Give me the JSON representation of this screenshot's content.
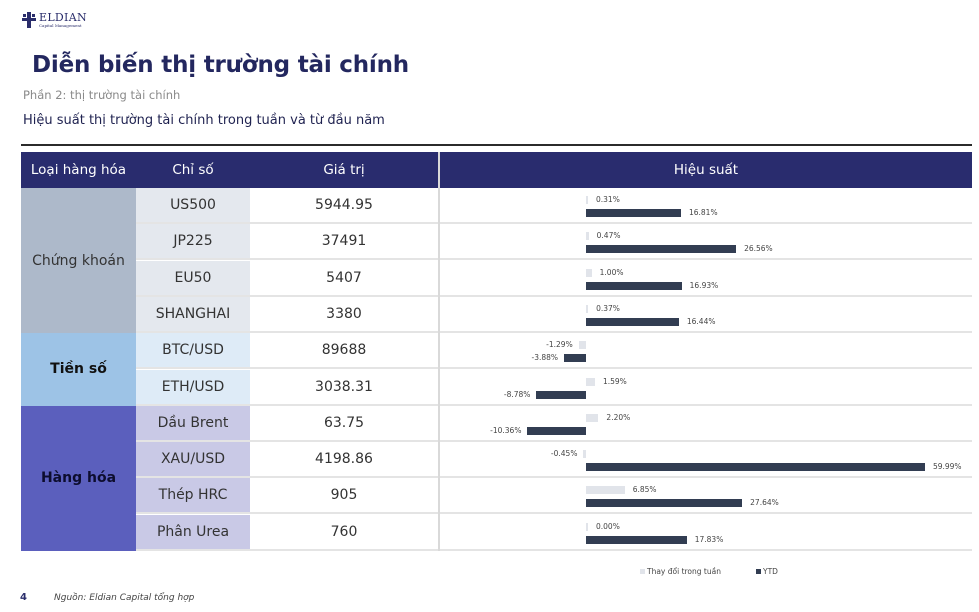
{
  "brand": {
    "name": "ELDIAN",
    "tagline": "Capital Management"
  },
  "title": "Diễn biến thị trường tài chính",
  "subtitle": "Phần 2: thị trường tài chính",
  "heading": "Hiệu suất thị trường tài chính trong tuần và từ đầu năm",
  "table": {
    "headers": {
      "category": "Loại hàng hóa",
      "index": "Chỉ số",
      "value": "Giá trị",
      "performance": "Hiệu suất"
    },
    "groups": [
      {
        "label": "Chứng khoán",
        "color": "#adb9ca",
        "idx_color": "#e4e8ee",
        "text_color": "#333333",
        "bold": false
      },
      {
        "label": "Tiền số",
        "color": "#9dc3e6",
        "idx_color": "#deebf7",
        "text_color": "#111111",
        "bold": true
      },
      {
        "label": "Hàng hóa",
        "color": "#5b5fbd",
        "idx_color": "#c9c9e6",
        "text_color": "#0d0d2e",
        "bold": true
      }
    ],
    "rows": [
      {
        "index": "US500",
        "value": "5944.95",
        "week": "0.31%",
        "ytd": "16.81%"
      },
      {
        "index": "JP225",
        "value": "37491",
        "week": "0.47%",
        "ytd": "26.56%"
      },
      {
        "index": "EU50",
        "value": "5407",
        "week": "1.00%",
        "ytd": "16.93%"
      },
      {
        "index": "SHANGHAI",
        "value": "3380",
        "week": "0.37%",
        "ytd": "16.44%"
      },
      {
        "index": "BTC/USD",
        "value": "89688",
        "week": "-1.29%",
        "ytd": "-3.88%"
      },
      {
        "index": "ETH/USD",
        "value": "3038.31",
        "week": "1.59%",
        "ytd": "-8.78%"
      },
      {
        "index": "Dầu Brent",
        "value": "63.75",
        "week": "2.20%",
        "ytd": "-10.36%"
      },
      {
        "index": "XAU/USD",
        "value": "4198.86",
        "week": "-0.45%",
        "ytd": "59.99%"
      },
      {
        "index": "Thép HRC",
        "value": "905",
        "week": "6.85%",
        "ytd": "27.64%"
      },
      {
        "index": "Phân Urea",
        "value": "760",
        "week": "0.00%",
        "ytd": "17.83%"
      }
    ]
  },
  "legend": {
    "week": "Thay đổi trong tuần",
    "ytd": "YTD"
  },
  "colors": {
    "header_bg": "#292c6e",
    "ytd_bar": "#323d52",
    "week_bar": "#e1e4ea",
    "title": "#23275f"
  },
  "footer": {
    "page": "4",
    "source": "Nguồn: Eldian Capital tổng hợp"
  },
  "chart_data": {
    "type": "bar",
    "orientation": "horizontal",
    "title": "Hiệu suất",
    "categories": [
      "US500",
      "JP225",
      "EU50",
      "SHANGHAI",
      "BTC/USD",
      "ETH/USD",
      "Dầu Brent",
      "XAU/USD",
      "Thép HRC",
      "Phân Urea"
    ],
    "series": [
      {
        "name": "Thay đổi trong tuần",
        "values": [
          0.31,
          0.47,
          1.0,
          0.37,
          -1.29,
          1.59,
          2.2,
          -0.45,
          6.85,
          0.0
        ]
      },
      {
        "name": "YTD",
        "values": [
          16.81,
          26.56,
          16.93,
          16.44,
          -3.88,
          -8.78,
          -10.36,
          59.99,
          27.64,
          17.83
        ]
      }
    ],
    "unit": "%",
    "legend_position": "bottom",
    "grid": false
  }
}
